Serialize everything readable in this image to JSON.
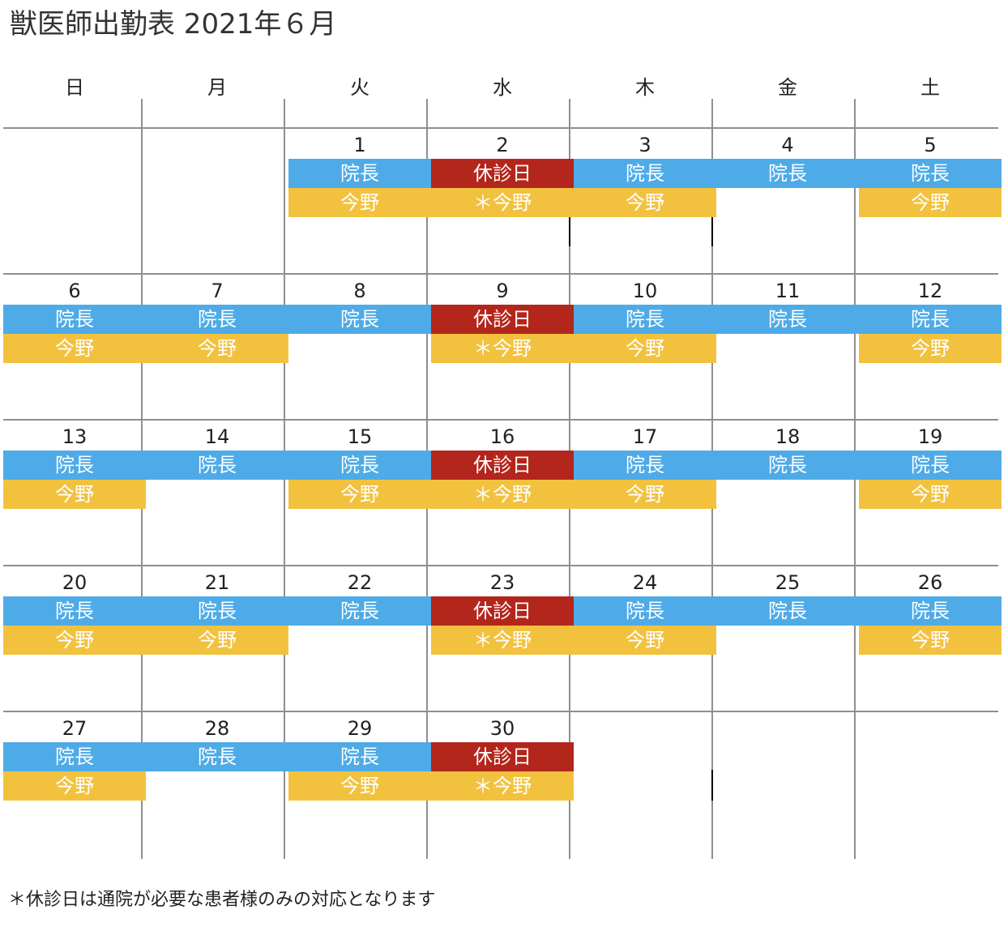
{
  "title": "獣医師出勤表 2021年６月",
  "weekdays": [
    "日",
    "月",
    "火",
    "水",
    "木",
    "金",
    "土"
  ],
  "labels": {
    "director": "院長",
    "konno": "今野",
    "konno_star": "＊今野",
    "closed": "休診日"
  },
  "colors": {
    "director": "#4eabe7",
    "konno": "#f2c23f",
    "closed": "#b3261c"
  },
  "weeks": [
    [
      null,
      null,
      {
        "day": "1",
        "row1": "院長",
        "row1_type": "director",
        "row2": "今野",
        "row2_type": "konno"
      },
      {
        "day": "2",
        "row1": "休診日",
        "row1_type": "closed",
        "row2": "＊今野",
        "row2_type": "konno"
      },
      {
        "day": "3",
        "row1": "院長",
        "row1_type": "director",
        "row2": "今野",
        "row2_type": "konno"
      },
      {
        "day": "4",
        "row1": "院長",
        "row1_type": "director"
      },
      {
        "day": "5",
        "row1": "院長",
        "row1_type": "director",
        "row2": "今野",
        "row2_type": "konno"
      }
    ],
    [
      {
        "day": "6",
        "row1": "院長",
        "row1_type": "director",
        "row2": "今野",
        "row2_type": "konno"
      },
      {
        "day": "7",
        "row1": "院長",
        "row1_type": "director",
        "row2": "今野",
        "row2_type": "konno"
      },
      {
        "day": "8",
        "row1": "院長",
        "row1_type": "director"
      },
      {
        "day": "9",
        "row1": "休診日",
        "row1_type": "closed",
        "row2": "＊今野",
        "row2_type": "konno"
      },
      {
        "day": "10",
        "row1": "院長",
        "row1_type": "director",
        "row2": "今野",
        "row2_type": "konno"
      },
      {
        "day": "11",
        "row1": "院長",
        "row1_type": "director"
      },
      {
        "day": "12",
        "row1": "院長",
        "row1_type": "director",
        "row2": "今野",
        "row2_type": "konno"
      }
    ],
    [
      {
        "day": "13",
        "row1": "院長",
        "row1_type": "director",
        "row2": "今野",
        "row2_type": "konno"
      },
      {
        "day": "14",
        "row1": "院長",
        "row1_type": "director"
      },
      {
        "day": "15",
        "row1": "院長",
        "row1_type": "director",
        "row2": "今野",
        "row2_type": "konno"
      },
      {
        "day": "16",
        "row1": "休診日",
        "row1_type": "closed",
        "row2": "＊今野",
        "row2_type": "konno"
      },
      {
        "day": "17",
        "row1": "院長",
        "row1_type": "director",
        "row2": "今野",
        "row2_type": "konno"
      },
      {
        "day": "18",
        "row1": "院長",
        "row1_type": "director"
      },
      {
        "day": "19",
        "row1": "院長",
        "row1_type": "director",
        "row2": "今野",
        "row2_type": "konno"
      }
    ],
    [
      {
        "day": "20",
        "row1": "院長",
        "row1_type": "director",
        "row2": "今野",
        "row2_type": "konno"
      },
      {
        "day": "21",
        "row1": "院長",
        "row1_type": "director",
        "row2": "今野",
        "row2_type": "konno"
      },
      {
        "day": "22",
        "row1": "院長",
        "row1_type": "director"
      },
      {
        "day": "23",
        "row1": "休診日",
        "row1_type": "closed",
        "row2": "＊今野",
        "row2_type": "konno"
      },
      {
        "day": "24",
        "row1": "院長",
        "row1_type": "director",
        "row2": "今野",
        "row2_type": "konno"
      },
      {
        "day": "25",
        "row1": "院長",
        "row1_type": "director"
      },
      {
        "day": "26",
        "row1": "院長",
        "row1_type": "director",
        "row2": "今野",
        "row2_type": "konno"
      }
    ],
    [
      {
        "day": "27",
        "row1": "院長",
        "row1_type": "director",
        "row2": "今野",
        "row2_type": "konno"
      },
      {
        "day": "28",
        "row1": "院長",
        "row1_type": "director"
      },
      {
        "day": "29",
        "row1": "院長",
        "row1_type": "director",
        "row2": "今野",
        "row2_type": "konno"
      },
      {
        "day": "30",
        "row1": "休診日",
        "row1_type": "closed",
        "row2": "＊今野",
        "row2_type": "konno"
      },
      null,
      null,
      null
    ]
  ],
  "footnote": "＊休診日は通院が必要な患者様のみの対応となります"
}
